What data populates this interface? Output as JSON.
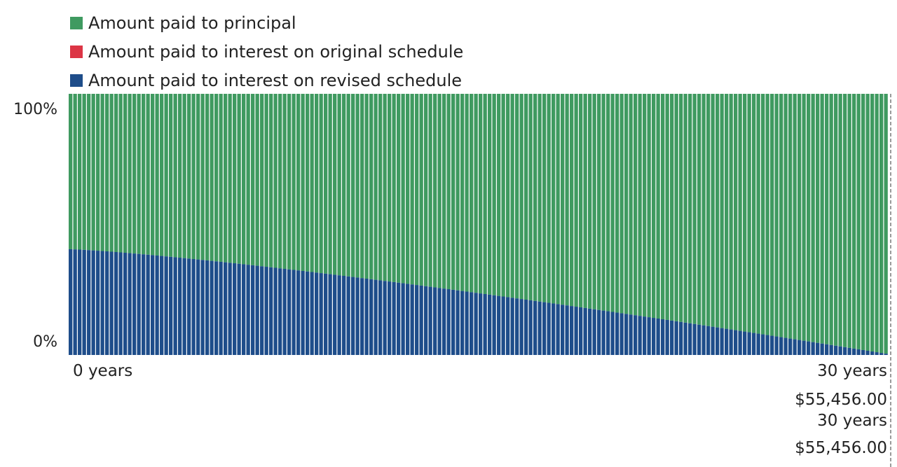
{
  "legend": {
    "items": [
      {
        "label": "Amount paid to principal",
        "color": "#3f9a60"
      },
      {
        "label": "Amount paid to interest on original schedule",
        "color": "#dc3545"
      },
      {
        "label": "Amount paid to interest on revised schedule",
        "color": "#1e4d8a"
      }
    ]
  },
  "axis": {
    "y_top_label": "100%",
    "y_bottom_label": "0%",
    "x_start_label": "0 years",
    "x_end_label": "30 years"
  },
  "end_markers": {
    "original_amount": "$55,456.00",
    "revised_years": "30 years",
    "revised_amount": "$55,456.00"
  },
  "chart_data": {
    "type": "bar",
    "stacked": true,
    "bar_count": 180,
    "series": [
      {
        "name": "Amount paid to interest on revised schedule",
        "color": "#1e4d8a",
        "start_percent": 40.5,
        "end_percent": 0.5
      },
      {
        "name": "Amount paid to principal",
        "color": "#3f9a60",
        "fill": "remainder to 100%"
      },
      {
        "name": "Amount paid to interest on original schedule",
        "color": "#dc3545",
        "visible_segments": 0
      }
    ],
    "x_range": [
      "0 years",
      "30 years"
    ],
    "y_range": [
      "0%",
      "100%"
    ],
    "legend_position": "top-left",
    "grid": false
  }
}
